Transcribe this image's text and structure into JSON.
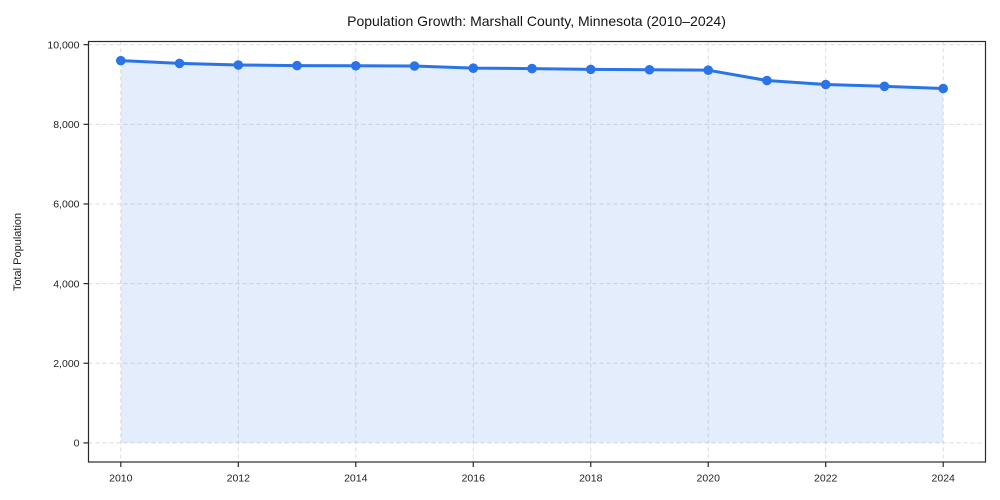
{
  "chart_data": {
    "type": "area",
    "title": "Population Growth: Marshall County, Minnesota (2010–2024)",
    "xlabel": "",
    "ylabel": "Total Population",
    "x": [
      2010,
      2011,
      2012,
      2013,
      2014,
      2015,
      2016,
      2017,
      2018,
      2019,
      2020,
      2021,
      2022,
      2023,
      2024
    ],
    "series": [
      {
        "name": "Total Population",
        "values": [
          9600,
          9530,
          9490,
          9475,
          9470,
          9465,
          9410,
          9400,
          9380,
          9370,
          9360,
          9100,
          9000,
          8955,
          8900
        ]
      }
    ],
    "x_tick_labels": [
      "2010",
      "2012",
      "2014",
      "2016",
      "2018",
      "2020",
      "2022",
      "2024"
    ],
    "y_tick_values": [
      0,
      2000,
      4000,
      6000,
      8000,
      10000
    ],
    "y_tick_labels": [
      "0",
      "2,000",
      "4,000",
      "6,000",
      "8,000",
      "10,000"
    ],
    "xlim": [
      2009.45,
      2024.72
    ],
    "ylim": [
      -480,
      10080
    ],
    "fill_baseline": 0,
    "grid": true,
    "grid_style": "dashed",
    "legend_position": "none",
    "marker": "circle",
    "colors": {
      "line": "#2a74e8",
      "fill": "rgba(42,116,232,0.13)",
      "grid": "#dcdcdc",
      "spine": "#2a2a2a",
      "tick_text": "#1f1f1f",
      "background": "#ffffff"
    }
  }
}
